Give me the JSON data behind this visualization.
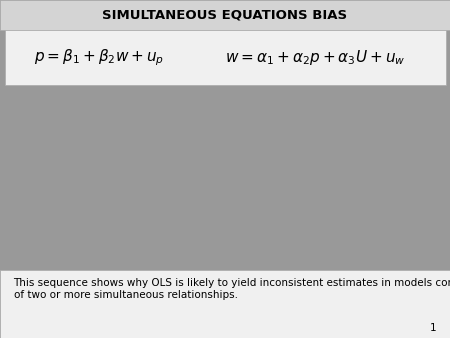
{
  "title": "SIMULTANEOUS EQUATIONS BIAS",
  "title_fontsize": 9.5,
  "title_bg_color": "#d4d4d4",
  "main_bg_color": "#999999",
  "equation_bg_color": "#f0f0f0",
  "equation1": "$p = \\beta_1 + \\beta_2 w + u_p$",
  "equation2": "$w = \\alpha_1 + \\alpha_2 p + \\alpha_3 U + u_w$",
  "equation_fontsize": 11,
  "footer_bg_color": "#f0f0f0",
  "footer_text": "This sequence shows why OLS is likely to yield inconsistent estimates in models composed\nof two or more simultaneous relationships.",
  "footer_fontsize": 7.5,
  "page_number": "1",
  "page_number_fontsize": 7.5,
  "border_color": "#aaaaaa"
}
